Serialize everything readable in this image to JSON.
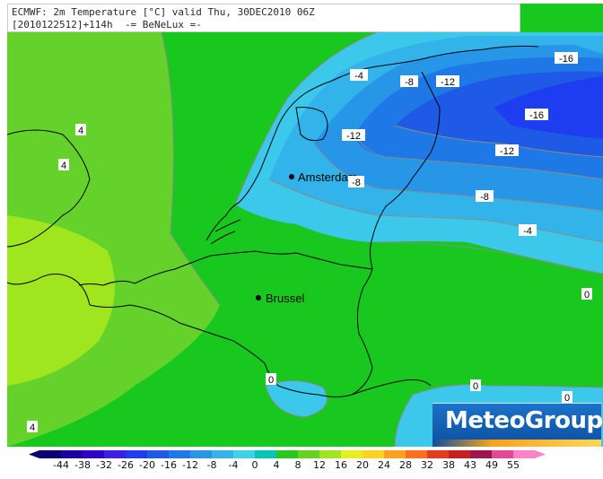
{
  "header": {
    "line1": "ECMWF: 2m Temperature [°C] valid Thu, 30DEC2010 06Z",
    "line2": "[2010122512]+114h  -= BeNeLux =-"
  },
  "cities": [
    {
      "name": "Amsterdam"
    },
    {
      "name": "Brussel"
    }
  ],
  "contour_labels": [
    "4",
    "4",
    "4",
    "-4",
    "-8",
    "-12",
    "-16",
    "-16",
    "-12",
    "-12",
    "-8",
    "-4",
    "0",
    "0",
    "0",
    "0",
    "-8"
  ],
  "brand": {
    "name": "MeteoGroup"
  },
  "colorbar": {
    "labels": [
      "-44",
      "-38",
      "-32",
      "-26",
      "-20",
      "-16",
      "-12",
      "-8",
      "-4",
      "0",
      "4",
      "8",
      "12",
      "16",
      "20",
      "24",
      "28",
      "32",
      "38",
      "43",
      "49",
      "55"
    ],
    "colors": [
      "#0a0073",
      "#1c00a0",
      "#3000c8",
      "#3c1ee6",
      "#1e3cf0",
      "#1e5ae6",
      "#1e78e6",
      "#2896e6",
      "#32b4eb",
      "#3cd2eb",
      "#00c8b4",
      "#28c81e",
      "#64d21e",
      "#a0e61e",
      "#e6f01e",
      "#ffd21e",
      "#ffa01e",
      "#ff6e1e",
      "#e63c1e",
      "#c81e1e",
      "#a01450",
      "#e64696",
      "#ff82c8"
    ]
  }
}
